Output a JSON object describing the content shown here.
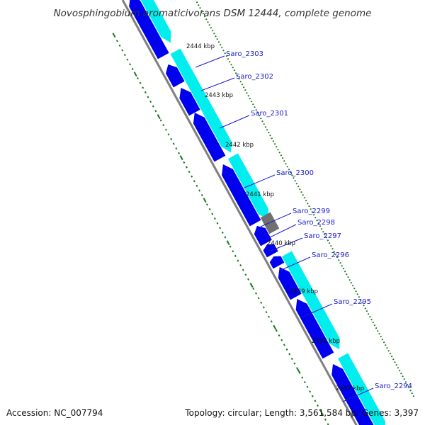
{
  "title": "Novosphingobium aromaticivorans DSM 12444, complete genome",
  "footer": {
    "accession": "Accession: NC_007794",
    "summary": "Topology: circular; Length: 3,561,584 bp; Genes: 3,397"
  },
  "colors": {
    "forward_gene": "#00eeee",
    "reverse_gene": "#0000ee",
    "other_feature": "#707070",
    "backbone": "#808080",
    "tick": "#1a7a1a",
    "gene_label": "#1a1acc"
  },
  "scale_labels": [
    "2444 kbp",
    "2443 kbp",
    "2442 kbp",
    "2441 kbp",
    "2440 kbp",
    "2439 kbp",
    "2438 kbp",
    "2437 kbp"
  ],
  "gene_labels": [
    "Saro_2303",
    "Saro_2302",
    "Saro_2301",
    "Saro_2300",
    "Saro_2299",
    "Saro_2298",
    "Saro_2297",
    "Saro_2296",
    "Saro_2295",
    "Saro_2294"
  ]
}
